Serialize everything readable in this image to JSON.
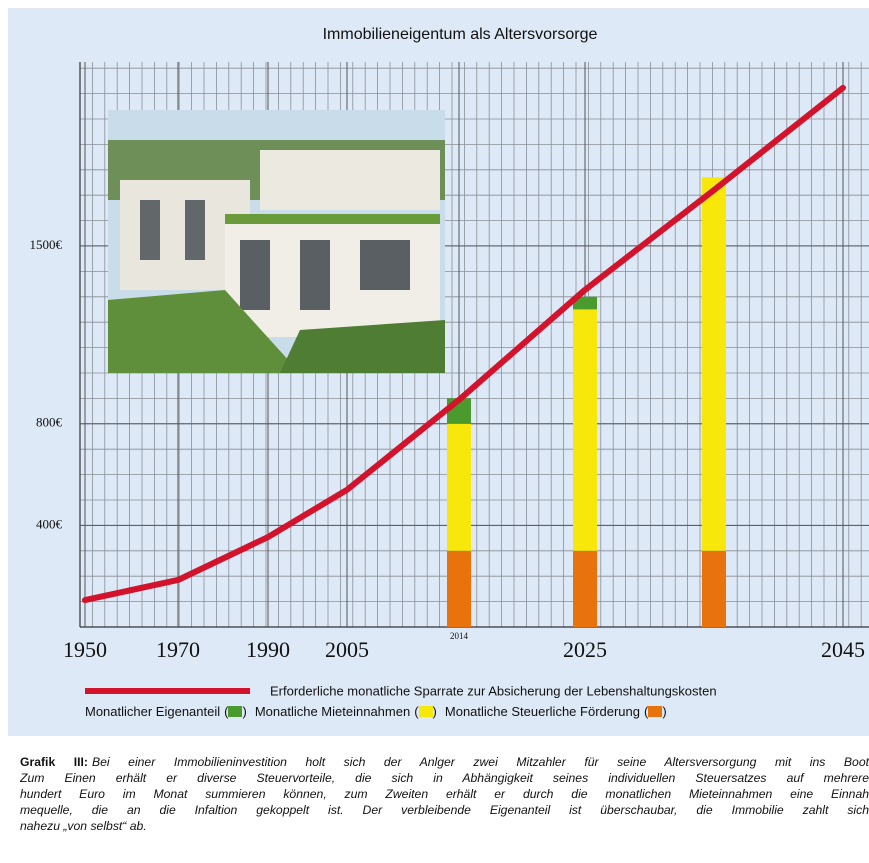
{
  "chart_data": {
    "type": "line",
    "title": "Immobilieneigentum als Altersvorsorge",
    "xticks": [
      1950,
      1970,
      1990,
      2005,
      2014,
      2025,
      2045
    ],
    "ylim": [
      0,
      2200
    ],
    "yticks": [
      {
        "value": 400,
        "label": "400€"
      },
      {
        "value": 800,
        "label": "800€"
      },
      {
        "value": 1500,
        "label": "1500€"
      }
    ],
    "grid": true,
    "series": [
      {
        "name": "Erforderliche monatliche Sparrate zur Absicherung der Lebenshaltungskosten",
        "type": "line",
        "color": "#d3122b",
        "x": [
          1950,
          1970,
          1990,
          2005,
          2014,
          2025,
          2035,
          2045
        ],
        "values": [
          106,
          185,
          354,
          540,
          894,
          1327,
          1720,
          2122
        ]
      },
      {
        "name": "Monatliche Steuerliche Förderung",
        "type": "bar",
        "color": "#e8720c",
        "x": [
          2014,
          2025,
          2035
        ],
        "values": [
          300,
          300,
          300
        ]
      },
      {
        "name": "Monatliche Mieteinnahmen",
        "type": "bar",
        "color": "#f7e70a",
        "x": [
          2014,
          2025,
          2035
        ],
        "values": [
          500,
          950,
          1470
        ]
      },
      {
        "name": "Monatlicher Eigenanteil",
        "type": "bar",
        "color": "#4a9a2e",
        "x": [
          2014,
          2025,
          2035
        ],
        "values": [
          100,
          50,
          0
        ]
      }
    ]
  },
  "caption": {
    "label": "Grafik III:",
    "lines": [
      "Bei einer Immobilieninvestition holt sich der Anlger zwei Mitzahler für seine Altersversorgung mit ins Boot",
      "Zum Einen erhält er diverse Steuervorteile, die sich in Abhängigkeit seines individuellen Steuersatzes auf mehrere",
      "hundert Euro im Monat summieren können, zum Zweiten erhält er durch die monatlichen Mieteinnahmen eine Einnah",
      "mequelle, die an die Infaltion gekoppelt ist. Der verbleibende Eigenanteil ist überschaubar, die Immobilie zahlt sich",
      "nahezu „von selbst“ ab."
    ]
  }
}
